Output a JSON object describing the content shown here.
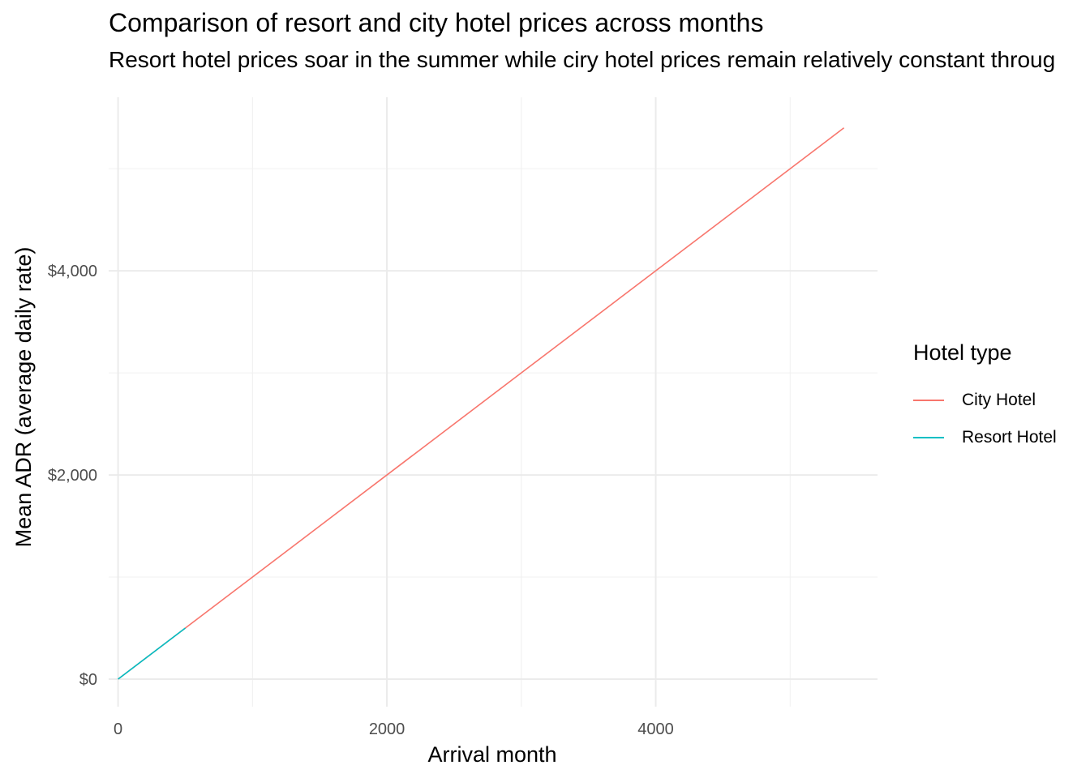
{
  "chart_data": {
    "type": "line",
    "title": "Comparison of resort and city hotel prices across months",
    "subtitle": "Resort hotel prices soar in the summer while ciry hotel prices remain relatively constant throug",
    "xlabel": "Arrival month",
    "ylabel": "Mean ADR (average daily rate)",
    "xlim": [
      -70,
      5650
    ],
    "ylim": [
      -270,
      5700
    ],
    "x_ticks": [
      0,
      2000,
      4000
    ],
    "x_tick_labels": [
      "0",
      "2000",
      "4000"
    ],
    "x_minor_ticks": [
      1000,
      3000,
      5000
    ],
    "y_ticks": [
      0,
      2000,
      4000
    ],
    "y_tick_labels": [
      "$0",
      "$2,000",
      "$4,000"
    ],
    "y_minor_ticks": [
      1000,
      3000,
      5000
    ],
    "grid": true,
    "legend": {
      "title": "Hotel type",
      "position": "right"
    },
    "series": [
      {
        "name": "City Hotel",
        "color": "#F8766D",
        "x": [
          0,
          5400
        ],
        "y": [
          0,
          5400
        ]
      },
      {
        "name": "Resort Hotel",
        "color": "#00BFC4",
        "x": [
          0,
          500
        ],
        "y": [
          0,
          500
        ]
      }
    ]
  }
}
